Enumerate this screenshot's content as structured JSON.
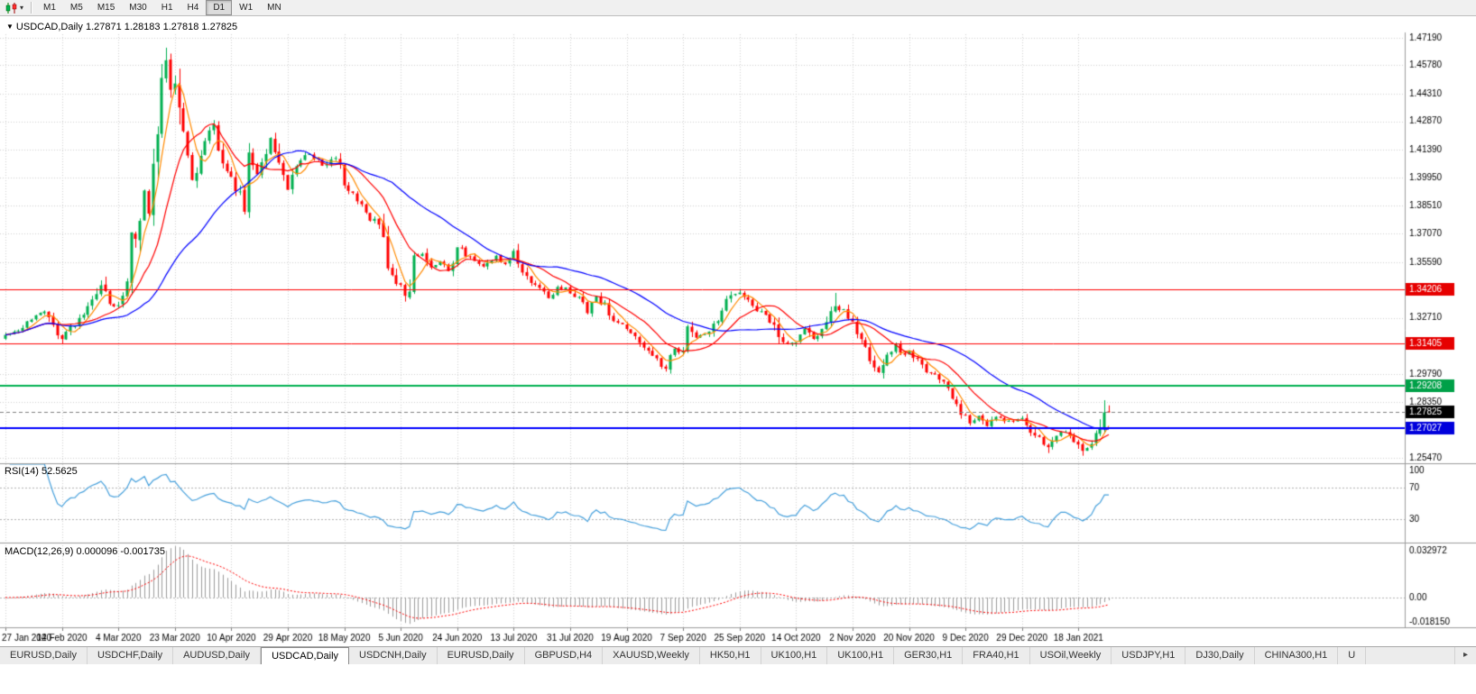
{
  "toolbar": {
    "timeframes": [
      {
        "label": "M1",
        "active": false
      },
      {
        "label": "M5",
        "active": false
      },
      {
        "label": "M15",
        "active": false
      },
      {
        "label": "M30",
        "active": false
      },
      {
        "label": "H1",
        "active": false
      },
      {
        "label": "H4",
        "active": false
      },
      {
        "label": "D1",
        "active": true
      },
      {
        "label": "W1",
        "active": false
      },
      {
        "label": "MN",
        "active": false
      }
    ]
  },
  "icons": {
    "chart_menu_caret": "▾",
    "symbol_marker": "▼",
    "tab_scroll_right": "▸"
  },
  "chart": {
    "caption_symbol": "USDCAD,Daily",
    "caption_ohlc": "1.27871 1.28183 1.27818 1.27825"
  },
  "indicators": {
    "rsi": {
      "label": "RSI(14)",
      "value": "52.5625",
      "axis_labels": [
        {
          "text": "100",
          "value": 100
        },
        {
          "text": "70",
          "value": 70
        },
        {
          "text": "30",
          "value": 30
        }
      ]
    },
    "macd": {
      "label": "MACD(12,26,9)",
      "values": "0.000096 -0.001735",
      "axis_labels": [
        {
          "text": "0.032972",
          "value": 0.032972
        },
        {
          "text": "0.00",
          "value": 0
        },
        {
          "text": "-0.018150",
          "value": -0.01815
        }
      ]
    }
  },
  "price_axis": {
    "labels": [
      "1.47190",
      "1.45780",
      "1.44310",
      "1.42870",
      "1.41390",
      "1.39950",
      "1.38510",
      "1.37070",
      "1.35590",
      "1.32710",
      "1.29790",
      "1.28350",
      "1.25470"
    ]
  },
  "time_axis": {
    "labels": [
      "27 Jan 2020",
      "14 Feb 2020",
      "4 Mar 2020",
      "23 Mar 2020",
      "10 Apr 2020",
      "29 Apr 2020",
      "18 May 2020",
      "5 Jun 2020",
      "24 Jun 2020",
      "13 Jul 2020",
      "31 Jul 2020",
      "19 Aug 2020",
      "7 Sep 2020",
      "25 Sep 2020",
      "14 Oct 2020",
      "2 Nov 2020",
      "20 Nov 2020",
      "9 Dec 2020",
      "29 Dec 2020",
      "18 Jan 2021"
    ]
  },
  "tabs": {
    "items": [
      {
        "label": "EURUSD,Daily",
        "active": false
      },
      {
        "label": "USDCHF,Daily",
        "active": false
      },
      {
        "label": "AUDUSD,Daily",
        "active": false
      },
      {
        "label": "USDCAD,Daily",
        "active": true
      },
      {
        "label": "USDCNH,Daily",
        "active": false
      },
      {
        "label": "EURUSD,Daily",
        "active": false
      },
      {
        "label": "GBPUSD,H4",
        "active": false
      },
      {
        "label": "XAUUSD,Weekly",
        "active": false
      },
      {
        "label": "HK50,H1",
        "active": false
      },
      {
        "label": "UK100,H1",
        "active": false
      },
      {
        "label": "UK100,H1",
        "active": false
      },
      {
        "label": "GER30,H1",
        "active": false
      },
      {
        "label": "FRA40,H1",
        "active": false
      },
      {
        "label": "USOil,Weekly",
        "active": false
      },
      {
        "label": "USDJPY,H1",
        "active": false
      },
      {
        "label": "DJ30,Daily",
        "active": false
      },
      {
        "label": "CHINA300,H1",
        "active": false
      },
      {
        "label": "U",
        "active": false
      }
    ]
  },
  "chart_data": {
    "type": "candlestick",
    "symbol": "USDCAD",
    "timeframe": "Daily",
    "bar_count": 255,
    "bars_per_x_label": 13,
    "axis": {
      "price_top": 1.4719,
      "price_bottom": 1.2547
    },
    "last_bar": {
      "open": 1.27871,
      "high": 1.28183,
      "low": 1.27818,
      "close": 1.27825
    },
    "close_anchors": [
      [
        0,
        1.3175
      ],
      [
        3,
        1.3215
      ],
      [
        6,
        1.3265
      ],
      [
        9,
        1.33
      ],
      [
        11,
        1.322
      ],
      [
        13,
        1.316
      ],
      [
        15,
        1.321
      ],
      [
        18,
        1.328
      ],
      [
        21,
        1.34
      ],
      [
        22,
        1.3445
      ],
      [
        24,
        1.333
      ],
      [
        26,
        1.334
      ],
      [
        28,
        1.342
      ],
      [
        29,
        1.366
      ],
      [
        30,
        1.372
      ],
      [
        32,
        1.392
      ],
      [
        33,
        1.379
      ],
      [
        34,
        1.399
      ],
      [
        35,
        1.423
      ],
      [
        36,
        1.45
      ],
      [
        37,
        1.46
      ],
      [
        38,
        1.445
      ],
      [
        39,
        1.448
      ],
      [
        41,
        1.418
      ],
      [
        43,
        1.399
      ],
      [
        45,
        1.41
      ],
      [
        47,
        1.421
      ],
      [
        48,
        1.426
      ],
      [
        50,
        1.405
      ],
      [
        52,
        1.4
      ],
      [
        55,
        1.386
      ],
      [
        56,
        1.408
      ],
      [
        58,
        1.402
      ],
      [
        61,
        1.42
      ],
      [
        63,
        1.408
      ],
      [
        65,
        1.394
      ],
      [
        67,
        1.407
      ],
      [
        70,
        1.412
      ],
      [
        73,
        1.406
      ],
      [
        76,
        1.41
      ],
      [
        78,
        1.396
      ],
      [
        80,
        1.392
      ],
      [
        82,
        1.386
      ],
      [
        84,
        1.379
      ],
      [
        86,
        1.377
      ],
      [
        88,
        1.357
      ],
      [
        89,
        1.351
      ],
      [
        91,
        1.342
      ],
      [
        92,
        1.338
      ],
      [
        93,
        1.342
      ],
      [
        94,
        1.358
      ],
      [
        96,
        1.361
      ],
      [
        98,
        1.353
      ],
      [
        100,
        1.356
      ],
      [
        102,
        1.352
      ],
      [
        104,
        1.364
      ],
      [
        107,
        1.358
      ],
      [
        110,
        1.3535
      ],
      [
        113,
        1.359
      ],
      [
        115,
        1.3555
      ],
      [
        117,
        1.362
      ],
      [
        119,
        1.353
      ],
      [
        121,
        1.3455
      ],
      [
        123,
        1.342
      ],
      [
        125,
        1.338
      ],
      [
        127,
        1.344
      ],
      [
        130,
        1.3405
      ],
      [
        132,
        1.337
      ],
      [
        134,
        1.33
      ],
      [
        136,
        1.339
      ],
      [
        138,
        1.333
      ],
      [
        140,
        1.325
      ],
      [
        143,
        1.322
      ],
      [
        145,
        1.319
      ],
      [
        147,
        1.312
      ],
      [
        149,
        1.307
      ],
      [
        151,
        1.303
      ],
      [
        152,
        1.301
      ],
      [
        154,
        1.312
      ],
      [
        156,
        1.309
      ],
      [
        157,
        1.323
      ],
      [
        159,
        1.3165
      ],
      [
        162,
        1.32
      ],
      [
        165,
        1.33
      ],
      [
        167,
        1.3385
      ],
      [
        169,
        1.34
      ],
      [
        171,
        1.337
      ],
      [
        173,
        1.3315
      ],
      [
        175,
        1.329
      ],
      [
        177,
        1.323
      ],
      [
        179,
        1.313
      ],
      [
        182,
        1.314
      ],
      [
        184,
        1.321
      ],
      [
        186,
        1.316
      ],
      [
        188,
        1.32
      ],
      [
        191,
        1.3325
      ],
      [
        193,
        1.331
      ],
      [
        196,
        1.32
      ],
      [
        199,
        1.306
      ],
      [
        201,
        1.299
      ],
      [
        203,
        1.307
      ],
      [
        205,
        1.313
      ],
      [
        207,
        1.308
      ],
      [
        208,
        1.3095
      ],
      [
        210,
        1.305
      ],
      [
        212,
        1.3
      ],
      [
        214,
        1.2965
      ],
      [
        216,
        1.2925
      ],
      [
        218,
        1.2855
      ],
      [
        220,
        1.279
      ],
      [
        221,
        1.276
      ],
      [
        222,
        1.272
      ],
      [
        224,
        1.277
      ],
      [
        226,
        1.2715
      ],
      [
        228,
        1.276
      ],
      [
        231,
        1.2735
      ],
      [
        234,
        1.275
      ],
      [
        236,
        1.2695
      ],
      [
        238,
        1.264
      ],
      [
        240,
        1.26
      ],
      [
        242,
        1.2655
      ],
      [
        244,
        1.269
      ],
      [
        246,
        1.264
      ],
      [
        248,
        1.259
      ],
      [
        250,
        1.2605
      ],
      [
        251,
        1.265
      ],
      [
        252,
        1.27
      ],
      [
        253,
        1.2788
      ],
      [
        254,
        1.27825
      ]
    ],
    "forced_highs": {
      "22": 1.3465,
      "37": 1.4668,
      "169": 1.342,
      "191": 1.34,
      "253": 1.2845
    },
    "forced_lows": {
      "13": 1.3135,
      "92": 1.3355,
      "152": 1.2993,
      "240": 1.2572,
      "248": 1.2558
    },
    "colors": {
      "up": "#00b050",
      "down": "#ff0000",
      "grid": "#d2d2d2"
    },
    "moving_averages": [
      {
        "period": 5,
        "color": "#ff8a00"
      },
      {
        "period": 13,
        "color": "#ff0000"
      },
      {
        "period": 34,
        "color": "#0000ff"
      }
    ],
    "horizontal_lines": [
      {
        "price": 1.34206,
        "label": "1.34206",
        "color": "#ff0000",
        "width": 1,
        "badge": "#e60000"
      },
      {
        "price": 1.31405,
        "label": "1.31405",
        "color": "#ff0000",
        "width": 1,
        "badge": "#e60000"
      },
      {
        "price": 1.29208,
        "label": "1.29208",
        "color": "#00b050",
        "width": 2,
        "badge": "#00a048"
      },
      {
        "price": 1.27027,
        "label": "1.27027",
        "color": "#0000ff",
        "width": 2,
        "badge": "#0000dc"
      }
    ],
    "current_price": {
      "value": 1.27825,
      "label": "1.27825",
      "line_color": "#808080",
      "badge": "#000000"
    },
    "indicators": {
      "rsi": {
        "period": 14,
        "current": 52.5625,
        "levels": [
          70,
          30
        ],
        "scale": [
          0,
          100
        ],
        "color": "#46a0dc"
      },
      "macd": {
        "fast": 12,
        "slow": 26,
        "signal": 9,
        "current_macd": 9.6e-05,
        "current_signal": -0.001735,
        "scale_max": 0.032972,
        "scale_min": -0.01815,
        "histogram_color": "#9c9c9c",
        "signal_color": "#ff0000"
      }
    }
  }
}
